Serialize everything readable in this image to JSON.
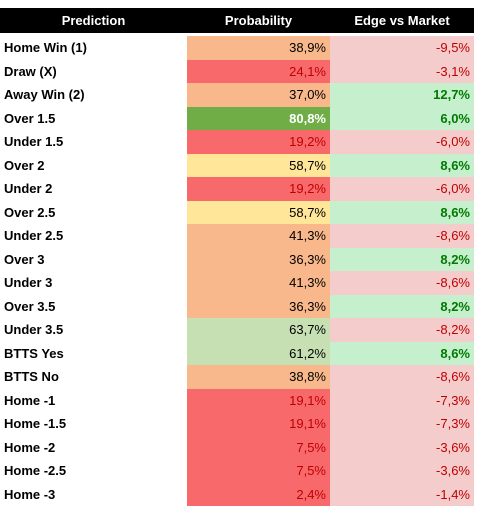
{
  "table": {
    "header": [
      "Prediction",
      "Probability",
      "Edge vs Market"
    ],
    "rows": [
      {
        "prediction": "Home Win (1)",
        "probability": "38,9%",
        "edge": "-9,5%",
        "probability_fill": "#f8b88b"
      },
      {
        "prediction": "Draw (X)",
        "probability": "24,1%",
        "edge": "-3,1%",
        "probability_fill": "#f8696b"
      },
      {
        "prediction": "Away Win (2)",
        "probability": "37,0%",
        "edge": "12,7%",
        "probability_fill": "#f8b88b"
      },
      {
        "prediction": "Over 1.5",
        "probability": "80,8%",
        "edge": "6,0%",
        "probability_fill": "#70ad47"
      },
      {
        "prediction": "Under 1.5",
        "probability": "19,2%",
        "edge": "-6,0%",
        "probability_fill": "#f8696b"
      },
      {
        "prediction": "Over 2",
        "probability": "58,7%",
        "edge": "8,6%",
        "probability_fill": "#ffe699"
      },
      {
        "prediction": "Under 2",
        "probability": "19,2%",
        "edge": "-6,0%",
        "probability_fill": "#f8696b"
      },
      {
        "prediction": "Over 2.5",
        "probability": "58,7%",
        "edge": "8,6%",
        "probability_fill": "#ffe699"
      },
      {
        "prediction": "Under 2.5",
        "probability": "41,3%",
        "edge": "-8,6%",
        "probability_fill": "#f8b88b"
      },
      {
        "prediction": "Over 3",
        "probability": "36,3%",
        "edge": "8,2%",
        "probability_fill": "#f8b88b"
      },
      {
        "prediction": "Under 3",
        "probability": "41,3%",
        "edge": "-8,6%",
        "probability_fill": "#f8b88b"
      },
      {
        "prediction": "Over 3.5",
        "probability": "36,3%",
        "edge": "8,2%",
        "probability_fill": "#f8b88b"
      },
      {
        "prediction": "Under 3.5",
        "probability": "63,7%",
        "edge": "-8,2%",
        "probability_fill": "#c6e0b4"
      },
      {
        "prediction": "BTTS Yes",
        "probability": "61,2%",
        "edge": "8,6%",
        "probability_fill": "#c6e0b4"
      },
      {
        "prediction": "BTTS No",
        "probability": "38,8%",
        "edge": "-8,6%",
        "probability_fill": "#f8b88b"
      },
      {
        "prediction": "Home -1",
        "probability": "19,1%",
        "edge": "-7,3%",
        "probability_fill": "#f8696b"
      },
      {
        "prediction": "Home -1.5",
        "probability": "19,1%",
        "edge": "-7,3%",
        "probability_fill": "#f8696b"
      },
      {
        "prediction": "Home -2",
        "probability": "7,5%",
        "edge": "-3,6%",
        "probability_fill": "#f8696b"
      },
      {
        "prediction": "Home -2.5",
        "probability": "7,5%",
        "edge": "-3,6%",
        "probability_fill": "#f8696b"
      },
      {
        "prediction": "Home -3",
        "probability": "2,4%",
        "edge": "-1,4%",
        "probability_fill": "#f8696b"
      }
    ]
  }
}
